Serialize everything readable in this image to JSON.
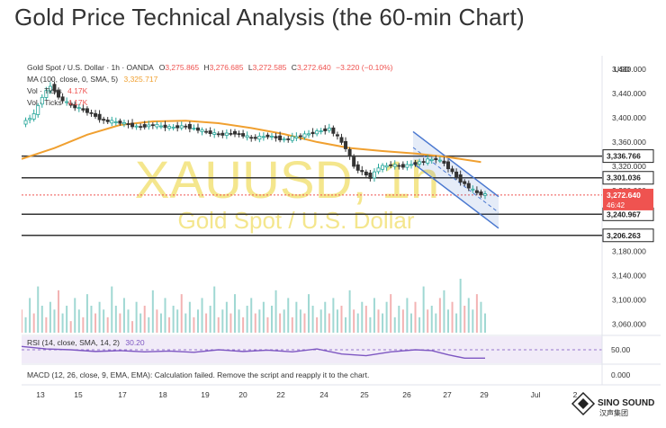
{
  "page": {
    "title": "Gold Price Technical Analysis (the 60-min Chart)"
  },
  "chart_data": {
    "type": "candlestick",
    "symbol_line": {
      "name": "Gold Spot / U.S. Dollar · 1h · OANDA",
      "o_label": "O",
      "o": "3,275.865",
      "h_label": "H",
      "h": "3,276.685",
      "l_label": "L",
      "l": "3,272.585",
      "c_label": "C",
      "c": "3,272.640",
      "change": "−3.220 (−0.10%)"
    },
    "ma_line": {
      "label": "MA (100, close, 0, SMA, 5)",
      "value": "3,325.717"
    },
    "vol_lines": [
      {
        "label": "Vol · Ticks",
        "value": "4.17K"
      },
      {
        "label": "Vol · Ticks",
        "value": "4.17K"
      }
    ],
    "watermark": {
      "symbol": "XAUUSD, 1h",
      "name": "Gold Spot / U.S. Dollar"
    },
    "currency": "USD",
    "price_axis": {
      "range": [
        3046,
        3502
      ],
      "ticks": [
        "3,480.000",
        "3,440.000",
        "3,400.000",
        "3,360.000",
        "3,320.000",
        "3,280.000",
        "3,180.000",
        "3,140.000",
        "3,100.000",
        "3,060.000"
      ]
    },
    "levels": [
      {
        "value": 3336.766,
        "label": "3,336.766"
      },
      {
        "value": 3301.036,
        "label": "3,301.036"
      },
      {
        "value": 3240.967,
        "label": "3,240.967"
      },
      {
        "value": 3206.263,
        "label": "3,206.263"
      }
    ],
    "current_price": {
      "value": 3272.64,
      "label": "3,272.640",
      "countdown": "46:42",
      "color": "#ef5350"
    },
    "x_axis": {
      "ticks": [
        "13",
        "15",
        "17",
        "18",
        "19",
        "20",
        "22",
        "24",
        "25",
        "26",
        "27",
        "29",
        "Jul",
        "2"
      ]
    },
    "price_series": [
      [
        0,
        3390
      ],
      [
        3,
        3405
      ],
      [
        5,
        3435
      ],
      [
        7,
        3452
      ],
      [
        8,
        3446
      ],
      [
        9,
        3433
      ],
      [
        12,
        3420
      ],
      [
        16,
        3410
      ],
      [
        20,
        3395
      ],
      [
        24,
        3392
      ],
      [
        28,
        3385
      ],
      [
        32,
        3388
      ],
      [
        36,
        3384
      ],
      [
        40,
        3386
      ],
      [
        44,
        3378
      ],
      [
        48,
        3372
      ],
      [
        52,
        3375
      ],
      [
        56,
        3366
      ],
      [
        60,
        3370
      ],
      [
        64,
        3364
      ],
      [
        68,
        3370
      ],
      [
        72,
        3377
      ],
      [
        75,
        3382
      ],
      [
        77,
        3368
      ],
      [
        79,
        3350
      ],
      [
        81,
        3320
      ],
      [
        83,
        3310
      ],
      [
        85,
        3302
      ],
      [
        87,
        3318
      ],
      [
        90,
        3322
      ],
      [
        93,
        3320
      ],
      [
        96,
        3325
      ],
      [
        99,
        3330
      ],
      [
        101,
        3332
      ],
      [
        103,
        3325
      ],
      [
        105,
        3310
      ],
      [
        107,
        3296
      ],
      [
        109,
        3285
      ],
      [
        111,
        3276
      ],
      [
        113,
        3273
      ]
    ],
    "ma_series": [
      [
        0,
        3332
      ],
      [
        8,
        3350
      ],
      [
        16,
        3372
      ],
      [
        24,
        3388
      ],
      [
        32,
        3394
      ],
      [
        40,
        3395
      ],
      [
        48,
        3391
      ],
      [
        56,
        3383
      ],
      [
        64,
        3373
      ],
      [
        72,
        3360
      ],
      [
        80,
        3350
      ],
      [
        88,
        3345
      ],
      [
        96,
        3341
      ],
      [
        104,
        3335
      ],
      [
        112,
        3327
      ]
    ],
    "volume": [
      6,
      4,
      9,
      5,
      12,
      7,
      4,
      8,
      6,
      11,
      5,
      7,
      3,
      9,
      6,
      4,
      10,
      7,
      5,
      8,
      6,
      4,
      12,
      7,
      5,
      9,
      6,
      3,
      8,
      5,
      7,
      4,
      11,
      6,
      5,
      9,
      4,
      7,
      6,
      10,
      5,
      8,
      4,
      6,
      9,
      5,
      7,
      12,
      4,
      6,
      8,
      5,
      10,
      6,
      4,
      7,
      9,
      5,
      6,
      8,
      4,
      7,
      11,
      5,
      6,
      9,
      4,
      8,
      6,
      5,
      10,
      7,
      4,
      6,
      8,
      5,
      9,
      6,
      7,
      4,
      11,
      6,
      5,
      8,
      7,
      4,
      9,
      6,
      5,
      8,
      10,
      4,
      7,
      6,
      9,
      5,
      8,
      4,
      12,
      6,
      7,
      5,
      9,
      11,
      6,
      8,
      5,
      14,
      7,
      9,
      6,
      10,
      8,
      5
    ],
    "rsi": {
      "label": "RSI (14, close, SMA, 14, 2)",
      "value": "30.20",
      "level": "50.00",
      "series": [
        [
          0,
          58
        ],
        [
          6,
          52
        ],
        [
          12,
          50
        ],
        [
          18,
          46
        ],
        [
          24,
          48
        ],
        [
          30,
          45
        ],
        [
          36,
          47
        ],
        [
          42,
          44
        ],
        [
          48,
          50
        ],
        [
          54,
          46
        ],
        [
          60,
          49
        ],
        [
          66,
          45
        ],
        [
          72,
          52
        ],
        [
          78,
          40
        ],
        [
          84,
          36
        ],
        [
          90,
          45
        ],
        [
          96,
          50
        ],
        [
          100,
          48
        ],
        [
          104,
          38
        ],
        [
          108,
          30
        ],
        [
          113,
          30
        ]
      ]
    },
    "macd": {
      "label": "MACD (12, 26, close, 9, EMA, EMA): Calculation failed. Remove the script and reapply it to the chart.",
      "value": "0.000"
    },
    "colors": {
      "up": "#26a69a",
      "ma": "#f0a030",
      "channel": "#4a78d0",
      "watermark": "#f3e27a",
      "rsi": "#7e57c2",
      "level_line": "#333333"
    },
    "logo": {
      "name": "SINO SOUND",
      "cn": "汉声集团"
    }
  }
}
